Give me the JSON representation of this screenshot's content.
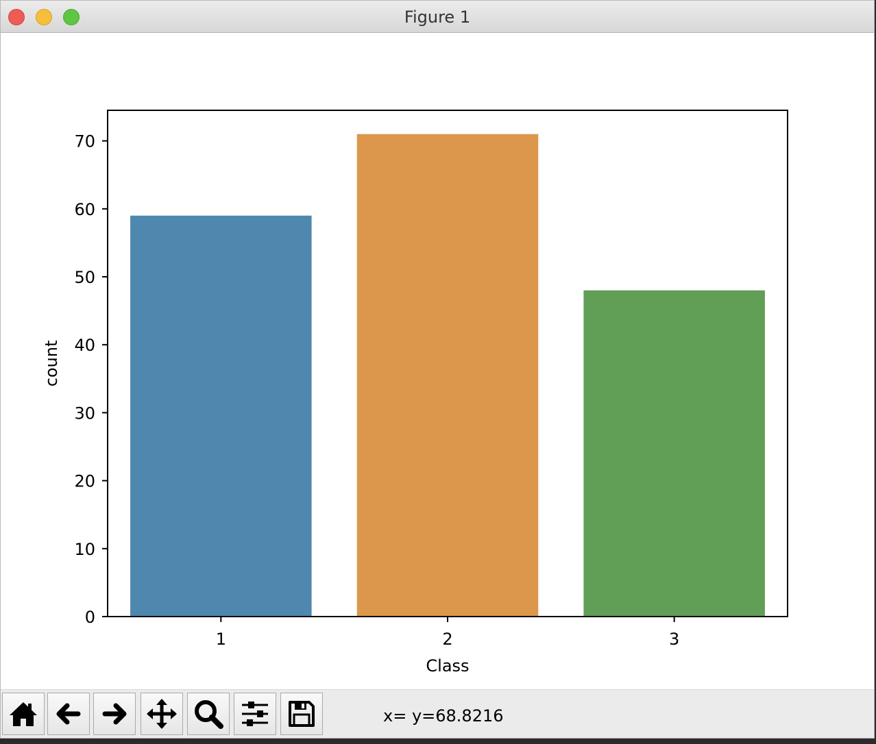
{
  "window": {
    "title": "Figure 1"
  },
  "toolbar": {
    "buttons": [
      {
        "name": "home-button",
        "icon": "home-icon"
      },
      {
        "name": "back-button",
        "icon": "arrow-left-icon"
      },
      {
        "name": "forward-button",
        "icon": "arrow-right-icon"
      },
      {
        "name": "pan-button",
        "icon": "move-icon"
      },
      {
        "name": "zoom-button",
        "icon": "magnifier-icon"
      },
      {
        "name": "configure-subplots-button",
        "icon": "sliders-icon"
      },
      {
        "name": "save-button",
        "icon": "floppy-disk-icon"
      }
    ],
    "coords": "x= y=68.8216"
  },
  "chart_data": {
    "type": "bar",
    "categories": [
      "1",
      "2",
      "3"
    ],
    "values": [
      59,
      71,
      48
    ],
    "colors": [
      "#4f88ae",
      "#dc974c",
      "#609f55"
    ],
    "xlabel": "Class",
    "ylabel": "count",
    "ylim": [
      0,
      74.5
    ],
    "yticks": [
      0,
      10,
      20,
      30,
      40,
      50,
      60,
      70
    ],
    "grid": false
  }
}
